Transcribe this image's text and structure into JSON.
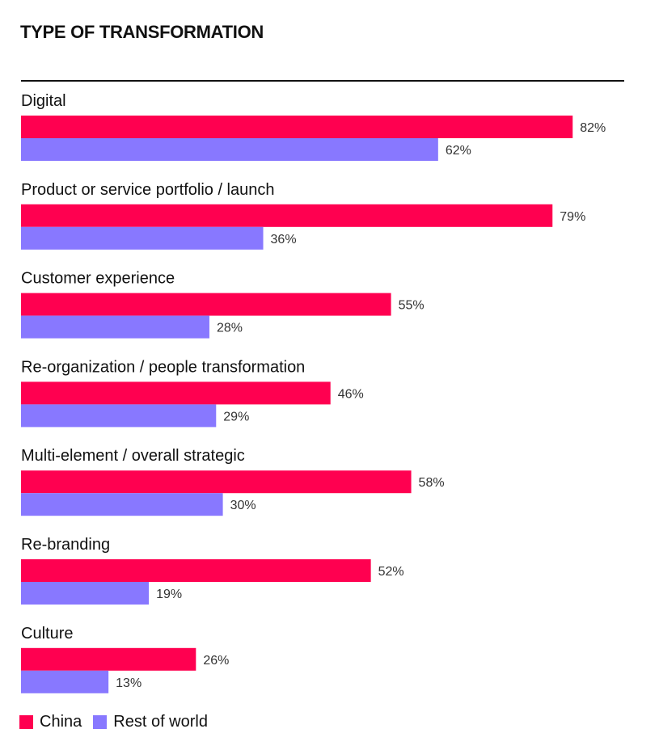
{
  "chart_data": {
    "type": "bar",
    "orientation": "horizontal",
    "title": "TYPE OF TRANSFORMATION",
    "categories": [
      "Digital",
      "Product or service portfolio / launch",
      "Customer experience",
      "Re-organization / people transformation",
      "Multi-element / overall strategic",
      "Re-branding",
      "Culture"
    ],
    "series": [
      {
        "name": "China",
        "color": "#ff0050",
        "values": [
          82,
          79,
          55,
          46,
          58,
          52,
          26
        ]
      },
      {
        "name": "Rest of world",
        "color": "#8878ff",
        "values": [
          62,
          36,
          28,
          29,
          30,
          19,
          13
        ]
      }
    ],
    "value_suffix": "%",
    "xlim": [
      0,
      100
    ],
    "grid": false,
    "legend": "bottom-left"
  }
}
